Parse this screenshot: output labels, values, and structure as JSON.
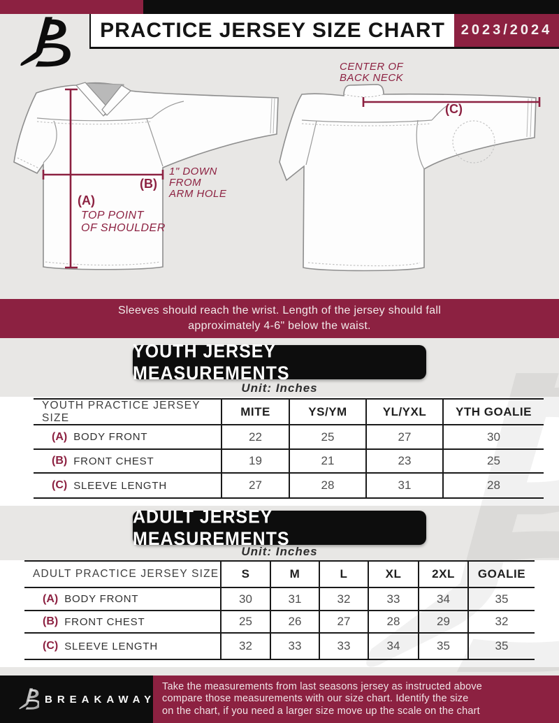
{
  "header": {
    "title": "PRACTICE JERSEY SIZE CHART",
    "season": "2023/2024"
  },
  "diagram": {
    "front": {
      "a_key": "(A)",
      "a_note_line1": "TOP POINT",
      "a_note_line2": "OF SHOULDER",
      "b_key": "(B)",
      "b_note_line1": "1\" DOWN",
      "b_note_line2": "FROM",
      "b_note_line3": "ARM HOLE"
    },
    "back": {
      "c_key": "(C)",
      "neck_note_line1": "CENTER OF",
      "neck_note_line2": "BACK NECK"
    }
  },
  "banner": {
    "line1": "Sleeves should reach the wrist. Length of the jersey should fall",
    "line2": "approximately 4-6\" below the waist."
  },
  "youth": {
    "title": "YOUTH JERSEY MEASUREMENTS",
    "unit": "Unit: Inches",
    "columns": [
      "YOUTH PRACTICE JERSEY SIZE",
      "MITE",
      "YS/YM",
      "YL/YXL",
      "YTH GOALIE"
    ],
    "rows": [
      {
        "key": "(A)",
        "label": "BODY FRONT",
        "values": [
          "22",
          "25",
          "27",
          "30"
        ]
      },
      {
        "key": "(B)",
        "label": "FRONT CHEST",
        "values": [
          "19",
          "21",
          "23",
          "25"
        ]
      },
      {
        "key": "(C)",
        "label": "SLEEVE LENGTH",
        "values": [
          "27",
          "28",
          "31",
          "28"
        ]
      }
    ]
  },
  "adult": {
    "title": "ADULT JERSEY MEASUREMENTS",
    "unit": "Unit: Inches",
    "columns": [
      "ADULT PRACTICE JERSEY SIZE",
      "S",
      "M",
      "L",
      "XL",
      "2XL",
      "GOALIE"
    ],
    "rows": [
      {
        "key": "(A)",
        "label": "BODY FRONT",
        "values": [
          "30",
          "31",
          "32",
          "33",
          "34",
          "35"
        ]
      },
      {
        "key": "(B)",
        "label": "FRONT CHEST",
        "values": [
          "25",
          "26",
          "27",
          "28",
          "29",
          "32"
        ]
      },
      {
        "key": "(C)",
        "label": "SLEEVE LENGTH",
        "values": [
          "32",
          "33",
          "33",
          "34",
          "35",
          "35"
        ]
      }
    ]
  },
  "footer": {
    "brand": "BREAKAWAY",
    "line1": "Take the measurements from last seasons jersey as instructed above",
    "line2": "compare those measurements  with our size chart. Identify the size",
    "line3": "on the chart, if you need a larger size move up the scale on the chart"
  },
  "colors": {
    "maroon": "#8c2141",
    "black": "#0d0d0d",
    "page_gray": "#e8e7e5",
    "table_line": "#1a1a1a"
  }
}
